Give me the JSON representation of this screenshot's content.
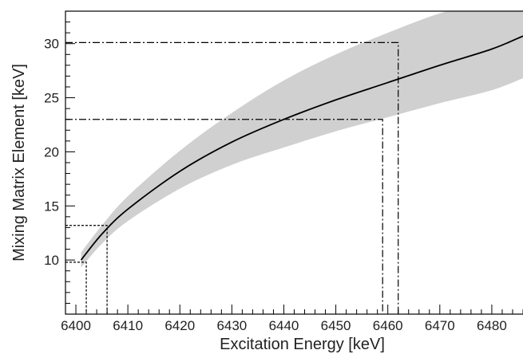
{
  "chart_data": {
    "type": "line",
    "xlabel": "Excitation Energy [keV]",
    "ylabel": "Mixing Matrix Element [keV]",
    "xlim": [
      6398,
      6486
    ],
    "ylim": [
      5,
      33
    ],
    "xticks": [
      6400,
      6410,
      6420,
      6430,
      6440,
      6450,
      6460,
      6470,
      6480
    ],
    "yticks": [
      10,
      15,
      20,
      25,
      30
    ],
    "grid": false,
    "colors": {
      "curve": "#000000",
      "band": "#d0d0d0",
      "axis": "#000000"
    },
    "series": [
      {
        "kind": "central-curve",
        "x": [
          6401,
          6405,
          6410,
          6420,
          6430,
          6440,
          6450,
          6460,
          6470,
          6480,
          6486
        ],
        "y": [
          10.0,
          12.4,
          14.7,
          18.2,
          20.9,
          23.0,
          24.8,
          26.4,
          28.0,
          29.5,
          30.7
        ]
      },
      {
        "kind": "uncertainty-band",
        "x": [
          6401,
          6405,
          6410,
          6420,
          6430,
          6440,
          6450,
          6460,
          6470,
          6480,
          6486
        ],
        "upper": [
          10.7,
          13.2,
          15.9,
          20.1,
          23.6,
          26.6,
          29.0,
          31.0,
          32.8,
          34.0,
          34.5
        ],
        "lower": [
          9.3,
          11.5,
          13.6,
          16.6,
          18.8,
          20.4,
          21.9,
          23.2,
          24.5,
          25.7,
          26.8
        ]
      }
    ],
    "annotations": [
      {
        "style": "dotted",
        "x": 6402,
        "y": 9.8
      },
      {
        "style": "dotted",
        "x": 6406,
        "y": 13.2
      },
      {
        "style": "dash-dot",
        "x": 6459,
        "y": 23.0
      },
      {
        "style": "dash-dot",
        "x": 6462,
        "y": 30.1
      }
    ]
  }
}
